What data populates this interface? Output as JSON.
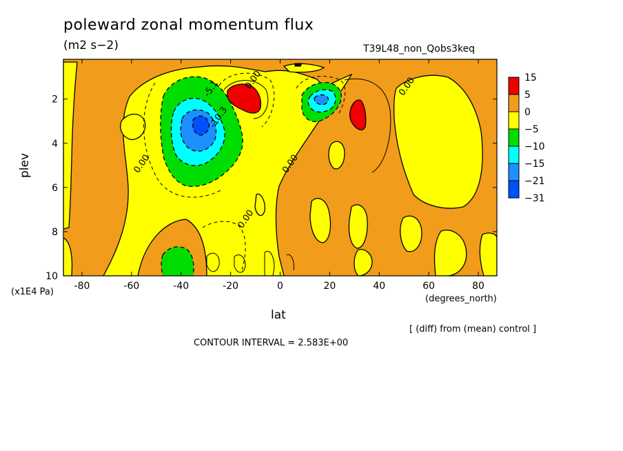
{
  "chart_data": {
    "type": "heatmap",
    "title": "poleward zonal momentum flux",
    "units": "(m2 s−2)",
    "run_label": "T39L48_non_Qobs3keq",
    "xlabel": "lat",
    "x_units": "(degrees_north)",
    "ylabel": "plev",
    "y_units": "(x1E4 Pa)",
    "xlim": [
      -87.5,
      87.5
    ],
    "ylim": [
      0.2,
      10
    ],
    "y_inverted": true,
    "x_ticks": [
      "-80",
      "-60",
      "-40",
      "-20",
      "0",
      "20",
      "40",
      "60",
      "80"
    ],
    "x_tick_values": [
      -80,
      -60,
      -40,
      -20,
      0,
      20,
      40,
      60,
      80
    ],
    "y_ticks": [
      "2",
      "4",
      "6",
      "8",
      "10"
    ],
    "y_tick_values": [
      2,
      4,
      6,
      8,
      10
    ],
    "contour_labels": [
      {
        "text": "0.00",
        "x": -55,
        "y": 5.0
      },
      {
        "text": "0.00",
        "x": -10,
        "y": 1.2
      },
      {
        "text": "0.00",
        "x": 5,
        "y": 5.0
      },
      {
        "text": "0.00",
        "x": -13,
        "y": 7.5
      },
      {
        "text": "0.00",
        "x": 52,
        "y": 1.5
      },
      {
        "text": "-5.1",
        "x": -27,
        "y": 1.6
      },
      {
        "text": "-10.3",
        "x": -24,
        "y": 2.9
      }
    ],
    "colorbar": {
      "labels": [
        "15",
        "5",
        "0",
        "−5",
        "−10",
        "−15",
        "−21",
        "−31"
      ],
      "colors": [
        "#ee0000",
        "#f29c1b",
        "#ffff00",
        "#00dd00",
        "#00ffff",
        "#1d90ff",
        "#0050ff"
      ]
    },
    "levels_approx": [
      -31,
      -21,
      -15,
      -10,
      -5,
      0,
      5,
      15
    ],
    "regions": [
      {
        "name": "southern-jet-minimum",
        "lat": -34,
        "plev": 3.0,
        "value": -28
      },
      {
        "name": "southern-upper-negative",
        "lat": -38,
        "plev": 2.4,
        "value": -14
      },
      {
        "name": "southern-lower-negative",
        "lat": -37,
        "plev": 9.7,
        "value": -8
      },
      {
        "name": "subtropical-positive-sh",
        "lat": -17,
        "plev": 1.8,
        "value": 12
      },
      {
        "name": "subtropical-negative-nh",
        "lat": 17,
        "plev": 2.0,
        "value": -13
      },
      {
        "name": "subtropical-positive-nh",
        "lat": 32,
        "plev": 2.6,
        "value": 9
      }
    ],
    "contour_interval": "CONTOUR INTERVAL = 2.583E+00",
    "note": "[ (diff) from (mean) control ]"
  }
}
